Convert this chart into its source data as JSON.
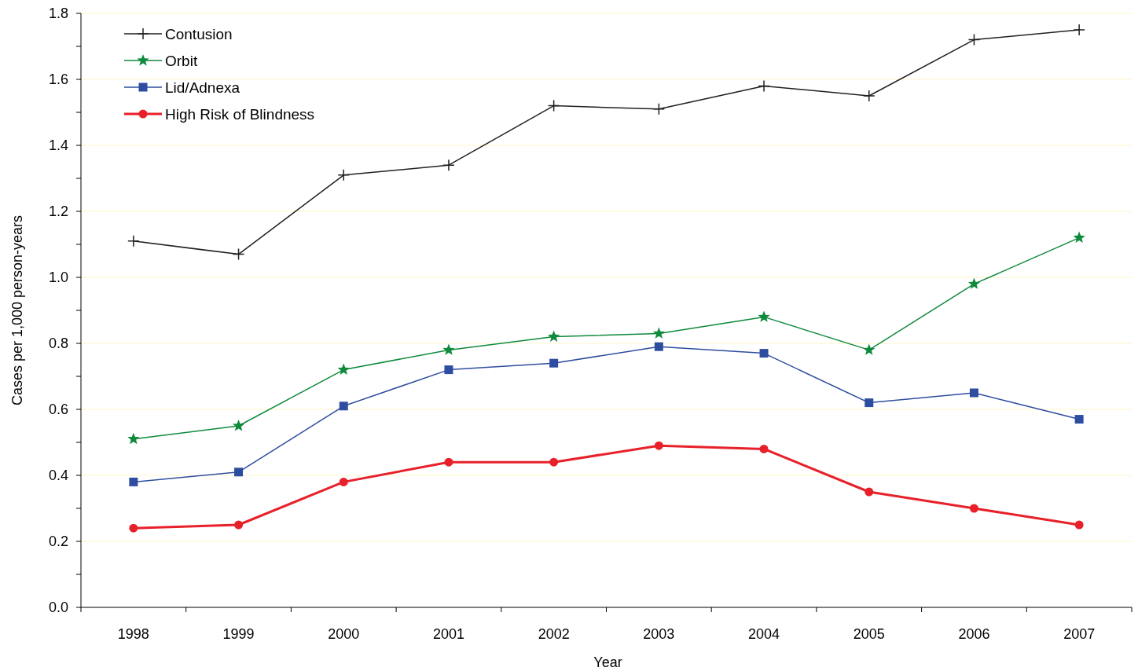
{
  "chart_data": {
    "type": "line",
    "xlabel": "Year",
    "ylabel": "Cases per 1,000 person-years",
    "categories": [
      "1998",
      "1999",
      "2000",
      "2001",
      "2002",
      "2003",
      "2004",
      "2005",
      "2006",
      "2007"
    ],
    "ylim": [
      0,
      1.8
    ],
    "yticks": [
      {
        "value": 0,
        "label": "0.0"
      },
      {
        "value": 0.1,
        "label": null
      },
      {
        "value": 0.2,
        "label": "0.2"
      },
      {
        "value": 0.3,
        "label": null
      },
      {
        "value": 0.4,
        "label": "0.4"
      },
      {
        "value": 0.5,
        "label": null
      },
      {
        "value": 0.6,
        "label": "0.6"
      },
      {
        "value": 0.7,
        "label": null
      },
      {
        "value": 0.8,
        "label": "0.8"
      },
      {
        "value": 0.9,
        "label": null
      },
      {
        "value": 1.0,
        "label": "1.0"
      },
      {
        "value": 1.1,
        "label": null
      },
      {
        "value": 1.2,
        "label": "1.2"
      },
      {
        "value": 1.3,
        "label": null
      },
      {
        "value": 1.4,
        "label": "1.4"
      },
      {
        "value": 1.5,
        "label": null
      },
      {
        "value": 1.6,
        "label": "1.6"
      },
      {
        "value": 1.7,
        "label": null
      },
      {
        "value": 1.8,
        "label": "1.8"
      }
    ],
    "grid": "y",
    "legend": "top left",
    "series": [
      {
        "name": "Contusion",
        "color": "#231f20",
        "marker": "cross",
        "values": [
          1.11,
          1.07,
          1.31,
          1.34,
          1.52,
          1.51,
          1.58,
          1.55,
          1.72,
          1.75
        ]
      },
      {
        "name": "Orbit",
        "color": "#0f8a3c",
        "marker": "star",
        "values": [
          0.51,
          0.55,
          0.72,
          0.78,
          0.82,
          0.83,
          0.88,
          0.78,
          0.98,
          1.12
        ]
      },
      {
        "name": "Lid/Adnexa",
        "color": "#2e4da0",
        "marker": "square",
        "values": [
          0.38,
          0.41,
          0.61,
          0.72,
          0.74,
          0.79,
          0.77,
          0.62,
          0.65,
          0.57
        ]
      },
      {
        "name": "High Risk of Blindness",
        "color": "#e8202a",
        "marker": "circle",
        "values": [
          0.24,
          0.25,
          0.38,
          0.44,
          0.44,
          0.49,
          0.48,
          0.35,
          0.3,
          0.25
        ]
      }
    ]
  }
}
